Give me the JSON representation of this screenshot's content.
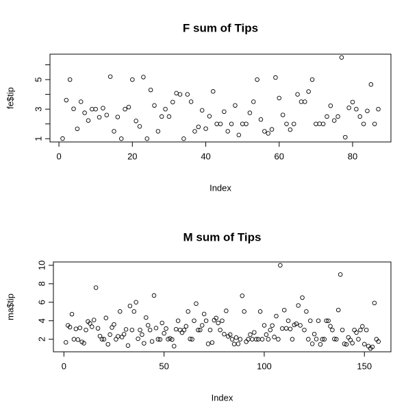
{
  "chart_data": [
    {
      "type": "scatter",
      "title": "F sum of Tips",
      "x_label": "Index",
      "y_label": "fe$tip",
      "xlim": [
        -2.44,
        90.44
      ],
      "xticks": [
        0,
        20,
        40,
        60,
        80
      ],
      "ylim": [
        0.78,
        6.72
      ],
      "yticks": [
        1,
        3,
        5
      ],
      "minor_yticks": [
        2,
        4,
        6
      ],
      "color": "#000000",
      "values": [
        1.01,
        3.61,
        5.0,
        3.02,
        1.67,
        3.5,
        2.75,
        2.23,
        3.0,
        3.0,
        2.45,
        3.07,
        2.6,
        5.2,
        1.5,
        2.47,
        1.0,
        3.0,
        3.14,
        5.0,
        2.2,
        1.83,
        5.17,
        1.0,
        4.3,
        3.25,
        1.5,
        2.5,
        3.0,
        2.5,
        3.48,
        4.08,
        4.0,
        1.0,
        4.0,
        3.5,
        1.5,
        1.8,
        2.92,
        1.68,
        2.52,
        4.2,
        2.0,
        2.0,
        2.83,
        1.5,
        2.0,
        3.25,
        1.25,
        2.0,
        2.0,
        2.75,
        3.5,
        5.0,
        2.3,
        1.5,
        1.36,
        1.63,
        5.14,
        3.75,
        2.61,
        2.0,
        1.61,
        2.0,
        4.0,
        3.5,
        3.5,
        4.19,
        5.0,
        2.0,
        2.01,
        2.0,
        2.5,
        3.23,
        2.23,
        2.5,
        6.5,
        1.1,
        3.09,
        3.48,
        3.0,
        2.5,
        2.0,
        2.88,
        4.67,
        2.0,
        3.0
      ]
    },
    {
      "type": "scatter",
      "title": "M sum of Tips",
      "x_label": "Index",
      "y_label": "ma$tip",
      "xlim": [
        -5.24,
        163.24
      ],
      "xticks": [
        0,
        50,
        100,
        150
      ],
      "ylim": [
        0.64,
        10.36
      ],
      "yticks": [
        2,
        4,
        6,
        8,
        10
      ],
      "color": "#000000",
      "values": [
        1.66,
        3.5,
        3.31,
        4.71,
        2.0,
        3.12,
        1.96,
        3.23,
        1.71,
        1.57,
        3.0,
        3.92,
        3.71,
        3.35,
        4.08,
        7.58,
        3.18,
        2.34,
        2.0,
        2.0,
        4.3,
        1.45,
        2.5,
        3.27,
        3.6,
        2.0,
        2.31,
        5.0,
        2.24,
        2.54,
        3.06,
        1.32,
        5.6,
        3.0,
        5.0,
        6.0,
        2.05,
        3.0,
        2.5,
        1.56,
        4.34,
        3.51,
        3.0,
        1.76,
        6.73,
        3.21,
        2.0,
        1.98,
        3.76,
        2.64,
        3.15,
        2.01,
        2.09,
        1.97,
        1.25,
        3.08,
        4.0,
        3.0,
        2.71,
        3.0,
        3.4,
        5.0,
        2.03,
        2.0,
        4.0,
        5.85,
        3.0,
        3.0,
        3.5,
        4.73,
        4.0,
        1.5,
        3.0,
        1.64,
        4.06,
        4.29,
        3.76,
        3.0,
        4.0,
        2.55,
        5.07,
        2.31,
        2.5,
        2.0,
        1.48,
        2.18,
        1.5,
        2.0,
        6.7,
        5.0,
        1.73,
        2.0,
        2.5,
        2.0,
        2.74,
        2.0,
        2.0,
        5.0,
        2.0,
        3.5,
        2.5,
        2.0,
        3.0,
        3.48,
        2.24,
        4.5,
        2.0,
        10.0,
        3.16,
        5.15,
        3.18,
        4.0,
        3.11,
        2.0,
        3.55,
        3.68,
        5.65,
        3.5,
        6.5,
        3.0,
        5.0,
        2.0,
        4.0,
        1.5,
        2.56,
        2.02,
        4.0,
        1.44,
        2.0,
        2.0,
        4.0,
        4.0,
        3.41,
        3.0,
        2.03,
        2.0,
        5.16,
        9.0,
        3.0,
        1.5,
        1.44,
        2.2,
        1.92,
        1.58,
        3.0,
        2.72,
        2.0,
        3.0,
        3.39,
        1.47,
        3.0,
        1.25,
        1.0,
        1.17,
        5.92,
        2.0,
        1.75
      ]
    }
  ]
}
